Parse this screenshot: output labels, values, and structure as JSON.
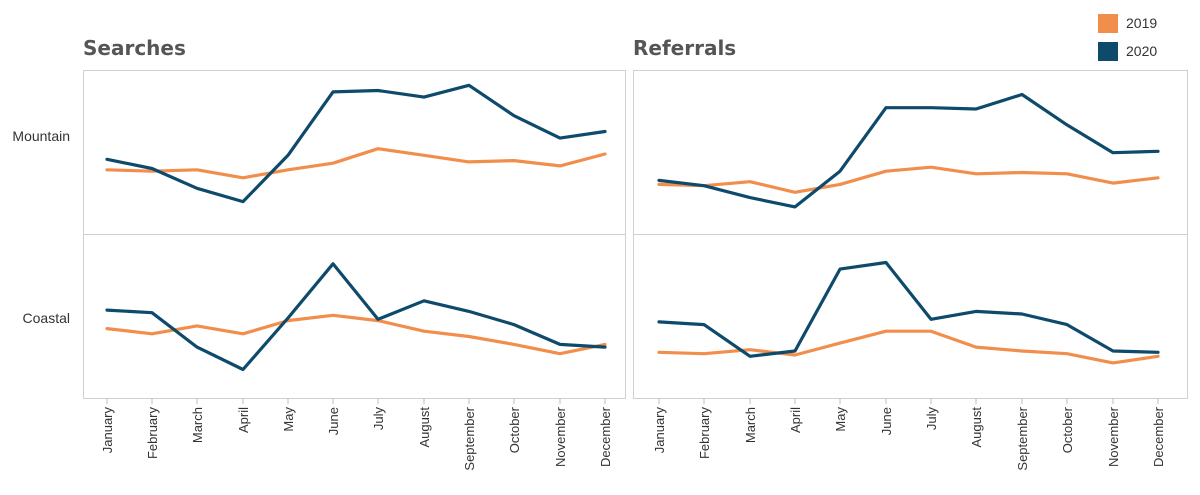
{
  "legend": {
    "items": [
      {
        "label": "2019",
        "color": "#F28E4B"
      },
      {
        "label": "2020",
        "color": "#0E4A6B"
      }
    ]
  },
  "columns": [
    "Searches",
    "Referrals"
  ],
  "rows": [
    "Mountain",
    "Coastal"
  ],
  "chart_data": {
    "type": "line",
    "categories": [
      "January",
      "February",
      "March",
      "April",
      "May",
      "June",
      "July",
      "August",
      "September",
      "October",
      "November",
      "December"
    ],
    "series_names": [
      "2019",
      "2020"
    ],
    "colors": {
      "2019": "#F28E4B",
      "2020": "#0E4A6B"
    },
    "grid": false,
    "legend_position": "top-right",
    "panels": [
      {
        "column": "Searches",
        "row": "Mountain",
        "series": [
          {
            "name": "2019",
            "values": [
              44,
              43,
              44,
              38,
              44,
              49,
              60,
              55,
              50,
              51,
              47,
              56
            ]
          },
          {
            "name": "2020",
            "values": [
              52,
              45,
              30,
              20,
              55,
              103,
              104,
              99,
              108,
              85,
              68,
              73
            ]
          }
        ]
      },
      {
        "column": "Referrals",
        "row": "Mountain",
        "series": [
          {
            "name": "2019",
            "values": [
              33,
              32,
              35,
              27,
              33,
              43,
              46,
              41,
              42,
              41,
              34,
              38
            ]
          },
          {
            "name": "2020",
            "values": [
              36,
              32,
              23,
              16,
              43,
              91,
              91,
              90,
              101,
              78,
              57,
              58
            ]
          }
        ]
      },
      {
        "column": "Searches",
        "row": "Coastal",
        "series": [
          {
            "name": "2019",
            "values": [
              48,
              44,
              50,
              44,
              54,
              58,
              54,
              46,
              42,
              36,
              29,
              36
            ]
          },
          {
            "name": "2020",
            "values": [
              62,
              60,
              34,
              17,
              56,
              97,
              55,
              69,
              61,
              51,
              36,
              34
            ]
          }
        ]
      },
      {
        "column": "Referrals",
        "row": "Coastal",
        "series": [
          {
            "name": "2019",
            "values": [
              30,
              29,
              32,
              28,
              37,
              46,
              46,
              34,
              31,
              29,
              22,
              27
            ]
          },
          {
            "name": "2020",
            "values": [
              53,
              51,
              27,
              31,
              93,
              98,
              55,
              61,
              59,
              51,
              31,
              30
            ]
          }
        ]
      }
    ],
    "ylim": [
      0,
      115
    ]
  }
}
